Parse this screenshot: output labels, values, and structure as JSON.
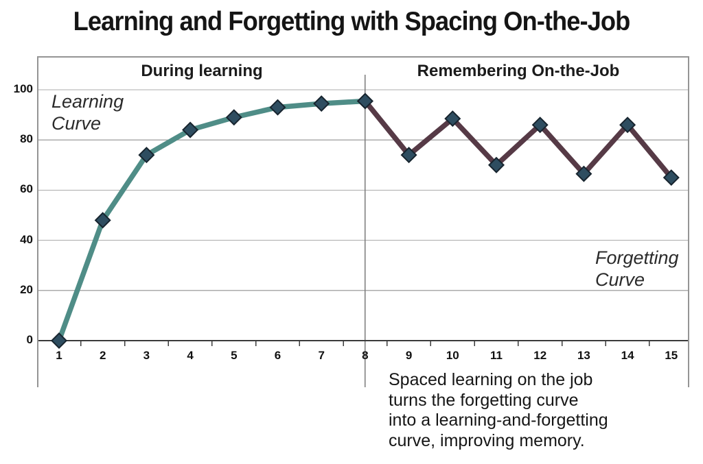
{
  "header": {
    "title": "Learning and Forgetting with Spacing On-the-Job"
  },
  "sections": {
    "left": "During learning",
    "right": "Remembering On-the-Job"
  },
  "annotations": {
    "learning": {
      "line1": "Learning",
      "line2": "Curve"
    },
    "forgetting": {
      "line1": "Forgetting",
      "line2": "Curve"
    }
  },
  "caption": {
    "lines": [
      "Spaced learning on the job",
      "turns the forgetting curve",
      "into a learning-and-forgetting",
      "curve, improving memory."
    ]
  },
  "chart_data": {
    "type": "line",
    "title": "Learning and Forgetting with Spacing On-the-Job",
    "xlabel": "",
    "ylabel": "",
    "xlim": [
      1,
      15
    ],
    "ylim": [
      0,
      100
    ],
    "x_ticks": [
      1,
      2,
      3,
      4,
      5,
      6,
      7,
      8,
      9,
      10,
      11,
      12,
      13,
      14,
      15
    ],
    "y_ticks": [
      0,
      20,
      40,
      60,
      80,
      100
    ],
    "grid": "horizontal",
    "legend_position": "none",
    "divider_x": 8,
    "series": [
      {
        "name": "Learning Curve",
        "color": "#4f8d87",
        "x": [
          1,
          2,
          3,
          4,
          5,
          6,
          7,
          8
        ],
        "values": [
          0,
          48,
          74,
          84,
          89,
          93,
          94.5,
          95.5
        ]
      },
      {
        "name": "Forgetting Curve",
        "color": "#563a46",
        "x": [
          8,
          9,
          10,
          11,
          12,
          13,
          14,
          15
        ],
        "values": [
          95.5,
          74,
          88.5,
          70,
          86,
          66.5,
          86,
          65
        ]
      }
    ],
    "marker": {
      "shape": "diamond",
      "size": 15,
      "fill": "#2e4d60",
      "stroke": "#17242e"
    },
    "colors": {
      "grid": "#ababab",
      "axis": "#3a3a3a",
      "border": "#949494",
      "divider": "#7a7a7a",
      "text": "#111111"
    }
  }
}
